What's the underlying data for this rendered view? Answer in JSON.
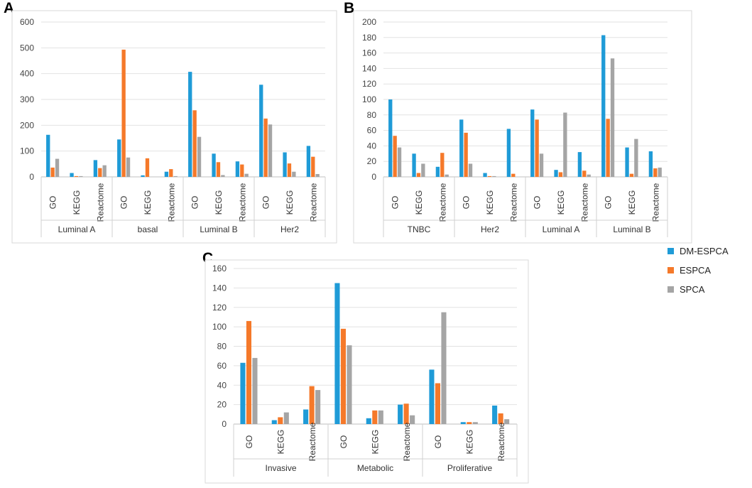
{
  "panel_labels": {
    "a": "A",
    "b": "B",
    "c": "C"
  },
  "colors": {
    "DM-ESPCA": "#1f9bd7",
    "ESPCA": "#f5792a",
    "SPCA": "#a5a5a5"
  },
  "legend": [
    "DM-ESPCA",
    "ESPCA",
    "SPCA"
  ],
  "chart_data": [
    {
      "id": "A",
      "type": "bar",
      "title": "",
      "ylim": [
        0,
        600
      ],
      "yticks": [
        0,
        100,
        200,
        300,
        400,
        500,
        600
      ],
      "series_names": [
        "DM-ESPCA",
        "ESPCA",
        "SPCA"
      ],
      "groups": [
        {
          "name": "Luminal A",
          "categories": [
            {
              "label": "GO",
              "values": [
                163,
                36,
                70
              ]
            },
            {
              "label": "KEGG",
              "values": [
                15,
                3,
                3
              ]
            },
            {
              "label": "Reactome",
              "values": [
                65,
                34,
                45
              ]
            }
          ]
        },
        {
          "name": "basal",
          "categories": [
            {
              "label": "GO",
              "values": [
                145,
                493,
                75
              ]
            },
            {
              "label": "KEGG",
              "values": [
                6,
                72,
                0
              ]
            },
            {
              "label": "Reactome",
              "values": [
                20,
                30,
                3
              ]
            }
          ]
        },
        {
          "name": "Luminal B",
          "categories": [
            {
              "label": "GO",
              "values": [
                407,
                258,
                155
              ]
            },
            {
              "label": "KEGG",
              "values": [
                90,
                57,
                7
              ]
            },
            {
              "label": "Reactome",
              "values": [
                60,
                48,
                12
              ]
            }
          ]
        },
        {
          "name": "Her2",
          "categories": [
            {
              "label": "GO",
              "values": [
                357,
                226,
                203
              ]
            },
            {
              "label": "KEGG",
              "values": [
                95,
                52,
                20
              ]
            },
            {
              "label": "Reactome",
              "values": [
                120,
                78,
                11
              ]
            }
          ]
        }
      ]
    },
    {
      "id": "B",
      "type": "bar",
      "title": "",
      "ylim": [
        0,
        200
      ],
      "yticks": [
        0,
        20,
        40,
        60,
        80,
        100,
        120,
        140,
        160,
        180,
        200
      ],
      "series_names": [
        "DM-ESPCA",
        "ESPCA",
        "SPCA"
      ],
      "groups": [
        {
          "name": "TNBC",
          "categories": [
            {
              "label": "GO",
              "values": [
                100,
                53,
                38
              ]
            },
            {
              "label": "KEGG",
              "values": [
                30,
                5,
                17
              ]
            },
            {
              "label": "Reactome",
              "values": [
                13,
                31,
                3
              ]
            }
          ]
        },
        {
          "name": "Her2",
          "categories": [
            {
              "label": "GO",
              "values": [
                74,
                57,
                17
              ]
            },
            {
              "label": "KEGG",
              "values": [
                5,
                1,
                1
              ]
            },
            {
              "label": "Reactome",
              "values": [
                62,
                4,
                0
              ]
            }
          ]
        },
        {
          "name": "Luminal A",
          "categories": [
            {
              "label": "GO",
              "values": [
                87,
                74,
                30
              ]
            },
            {
              "label": "KEGG",
              "values": [
                9,
                6,
                83
              ]
            },
            {
              "label": "Reactome",
              "values": [
                32,
                8,
                3
              ]
            }
          ]
        },
        {
          "name": "Luminal B",
          "categories": [
            {
              "label": "GO",
              "values": [
                183,
                75,
                153
              ]
            },
            {
              "label": "KEGG",
              "values": [
                38,
                4,
                49
              ]
            },
            {
              "label": "Reactome",
              "values": [
                33,
                11,
                12
              ]
            }
          ]
        }
      ]
    },
    {
      "id": "C",
      "type": "bar",
      "title": "",
      "ylim": [
        0,
        160
      ],
      "yticks": [
        0,
        20,
        40,
        60,
        80,
        100,
        120,
        140,
        160
      ],
      "series_names": [
        "DM-ESPCA",
        "ESPCA",
        "SPCA"
      ],
      "groups": [
        {
          "name": "Invasive",
          "categories": [
            {
              "label": "GO",
              "values": [
                63,
                106,
                68
              ]
            },
            {
              "label": "KEGG",
              "values": [
                4,
                7,
                12
              ]
            },
            {
              "label": "Reactome",
              "values": [
                15,
                39,
                35
              ]
            }
          ]
        },
        {
          "name": "Metabolic",
          "categories": [
            {
              "label": "GO",
              "values": [
                145,
                98,
                81
              ]
            },
            {
              "label": "KEGG",
              "values": [
                6,
                14,
                14
              ]
            },
            {
              "label": "Reactome",
              "values": [
                20,
                21,
                9
              ]
            }
          ]
        },
        {
          "name": "Proliferative",
          "categories": [
            {
              "label": "GO",
              "values": [
                56,
                42,
                115
              ]
            },
            {
              "label": "KEGG",
              "values": [
                2,
                2,
                2
              ]
            },
            {
              "label": "Reactome",
              "values": [
                19,
                11,
                5
              ]
            }
          ]
        }
      ]
    }
  ]
}
